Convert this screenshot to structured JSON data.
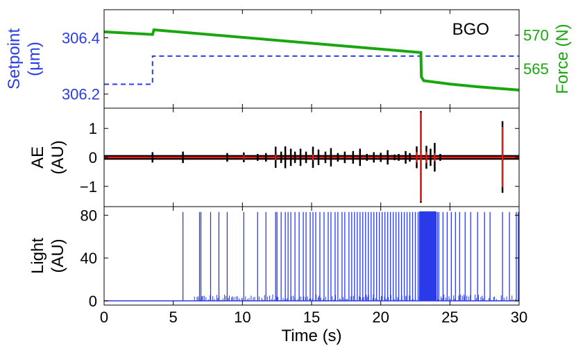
{
  "chart_data": [
    {
      "type": "line",
      "panel": "setpoint-force",
      "annotation": "BGO",
      "xlim": [
        0,
        30
      ],
      "y_left": {
        "label_lines": [
          "Setpoint",
          "(μm)"
        ],
        "ylim": [
          306.15,
          306.5
        ],
        "ticks": [
          306.2,
          306.4
        ],
        "tick_labels": [
          "306.2",
          "306.4"
        ],
        "color": "#2b3be8"
      },
      "y_right": {
        "label": "Force (N)",
        "ylim": [
          559.1,
          573.8
        ],
        "ticks": [
          565,
          570
        ],
        "tick_labels": [
          "565",
          "570"
        ],
        "color": "#1aa60e"
      },
      "series": [
        {
          "axis": "left",
          "style": "dashed",
          "color": "#2b3be8",
          "x": [
            0,
            3.5,
            3.5,
            30
          ],
          "y": [
            306.235,
            306.235,
            306.335,
            306.335
          ]
        },
        {
          "axis": "right",
          "style": "solid",
          "color": "#1aa60e",
          "x": [
            0,
            3.5,
            3.6,
            22.9,
            22.93,
            23.1,
            25,
            27,
            30
          ],
          "y": [
            570.5,
            570.1,
            570.8,
            567.4,
            563.8,
            563.2,
            562.7,
            562.3,
            561.8
          ]
        }
      ]
    },
    {
      "type": "line",
      "panel": "ae",
      "xlim": [
        0,
        30
      ],
      "ylabel_lines": [
        "AE",
        "(AU)"
      ],
      "ylim": [
        -1.7,
        1.7
      ],
      "ticks": [
        -1,
        0,
        1
      ],
      "tick_labels": [
        "−1",
        "0",
        "1"
      ],
      "baseline": 0.0,
      "series": [
        {
          "color": "#000000",
          "bursts": [
            {
              "x": 3.5,
              "amp": 0.18
            },
            {
              "x": 5.7,
              "amp": 0.2
            },
            {
              "x": 8.9,
              "amp": 0.15
            },
            {
              "x": 10.1,
              "amp": 0.17
            },
            {
              "x": 11.1,
              "amp": 0.12
            },
            {
              "x": 11.7,
              "amp": 0.15
            },
            {
              "x": 12.4,
              "amp": 0.37
            },
            {
              "x": 12.8,
              "amp": 0.2
            },
            {
              "x": 13.1,
              "amp": 0.38
            },
            {
              "x": 13.5,
              "amp": 0.3
            },
            {
              "x": 13.8,
              "amp": 0.2
            },
            {
              "x": 14.2,
              "amp": 0.3
            },
            {
              "x": 14.6,
              "amp": 0.2
            },
            {
              "x": 15.1,
              "amp": 0.37
            },
            {
              "x": 15.5,
              "amp": 0.27
            },
            {
              "x": 16.0,
              "amp": 0.2
            },
            {
              "x": 16.4,
              "amp": 0.32
            },
            {
              "x": 16.9,
              "amp": 0.15
            },
            {
              "x": 17.4,
              "amp": 0.2
            },
            {
              "x": 18.0,
              "amp": 0.22
            },
            {
              "x": 18.5,
              "amp": 0.3
            },
            {
              "x": 19.0,
              "amp": 0.12
            },
            {
              "x": 19.5,
              "amp": 0.18
            },
            {
              "x": 20.0,
              "amp": 0.16
            },
            {
              "x": 20.5,
              "amp": 0.25
            },
            {
              "x": 21.0,
              "amp": 0.1
            },
            {
              "x": 21.3,
              "amp": 0.12
            },
            {
              "x": 21.8,
              "amp": 0.22
            },
            {
              "x": 22.1,
              "amp": 0.15
            },
            {
              "x": 22.6,
              "amp": 0.38
            },
            {
              "x": 22.9,
              "amp": 1.6
            },
            {
              "x": 23.3,
              "amp": 0.4
            },
            {
              "x": 23.6,
              "amp": 0.3
            },
            {
              "x": 23.9,
              "amp": 0.5
            },
            {
              "x": 24.3,
              "amp": 0.12
            },
            {
              "x": 28.8,
              "amp": 1.25
            }
          ]
        },
        {
          "color": "#e8201a",
          "bursts": [
            {
              "x": 10.1,
              "amp": 0.08
            },
            {
              "x": 12.4,
              "amp": 0.1
            },
            {
              "x": 15.1,
              "amp": 0.1
            },
            {
              "x": 22.6,
              "amp": 0.18
            },
            {
              "x": 22.9,
              "amp": 1.55
            },
            {
              "x": 23.3,
              "amp": 0.2
            },
            {
              "x": 23.9,
              "amp": 0.15
            },
            {
              "x": 28.8,
              "amp": 1.05
            }
          ]
        }
      ]
    },
    {
      "type": "line",
      "panel": "light",
      "xlim": [
        0,
        30
      ],
      "ylabel_lines": [
        "Light",
        "(AU)"
      ],
      "ylim": [
        -4,
        88
      ],
      "ticks": [
        0,
        40,
        80
      ],
      "tick_labels": [
        "0",
        "40",
        "80"
      ],
      "baseline": 0,
      "saturation": 83,
      "dense_range": [
        22.8,
        24.0
      ],
      "series": [
        {
          "color": "#2b3be8",
          "spike_x": [
            5.7,
            6.9,
            7.0,
            7.7,
            8.3,
            8.9,
            10.1,
            11.1,
            11.7,
            12.4,
            12.5,
            12.8,
            13.1,
            13.3,
            13.5,
            13.8,
            14.1,
            14.4,
            14.6,
            14.9,
            15.1,
            15.3,
            15.6,
            15.9,
            16.2,
            16.4,
            16.7,
            16.9,
            17.2,
            17.4,
            17.7,
            17.9,
            18.1,
            18.3,
            18.5,
            18.7,
            18.9,
            19.1,
            19.3,
            19.5,
            19.7,
            19.9,
            20.1,
            20.3,
            20.5,
            20.7,
            20.9,
            21.1,
            21.3,
            21.5,
            21.7,
            21.9,
            22.1,
            22.3,
            22.5,
            22.7,
            24.1,
            24.2,
            24.5,
            24.8,
            25.1,
            25.4,
            25.7,
            26.1,
            26.5,
            27.0,
            27.5,
            27.9,
            28.8,
            29.3,
            29.8,
            29.95
          ]
        }
      ]
    }
  ],
  "x_axis": {
    "label": "Time (s)",
    "ticks": [
      0,
      5,
      10,
      15,
      20,
      25,
      30
    ],
    "tick_labels": [
      "0",
      "5",
      "10",
      "15",
      "20",
      "25",
      "30"
    ]
  }
}
